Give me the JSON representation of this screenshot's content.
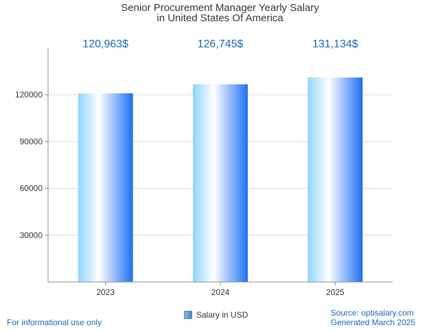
{
  "chart_data": {
    "type": "bar",
    "title_line1": "Senior Procurement Manager Yearly Salary",
    "title_line2": "in United States Of America",
    "categories": [
      "2023",
      "2024",
      "2025"
    ],
    "series": [
      {
        "name": "Salary in USD",
        "values": [
          120963,
          126745,
          131134
        ],
        "labels": [
          "120,963$",
          "126,745$",
          "131,134$"
        ]
      }
    ],
    "y_ticks": [
      30000,
      60000,
      90000,
      120000
    ],
    "ylim": [
      0,
      150000
    ],
    "grid": true,
    "legend_position": "bottom"
  },
  "colors": {
    "bar_left": "#8fd5ff",
    "bar_mid": "#ffffff",
    "bar_right": "#1f6ff5",
    "value_label": "#1565c0",
    "grid": "#dddddd",
    "axis": "#888888"
  },
  "footer": {
    "disclaimer": "For informational use only",
    "source": "Source: optisalary.com",
    "generated": "Generated March 2025"
  }
}
